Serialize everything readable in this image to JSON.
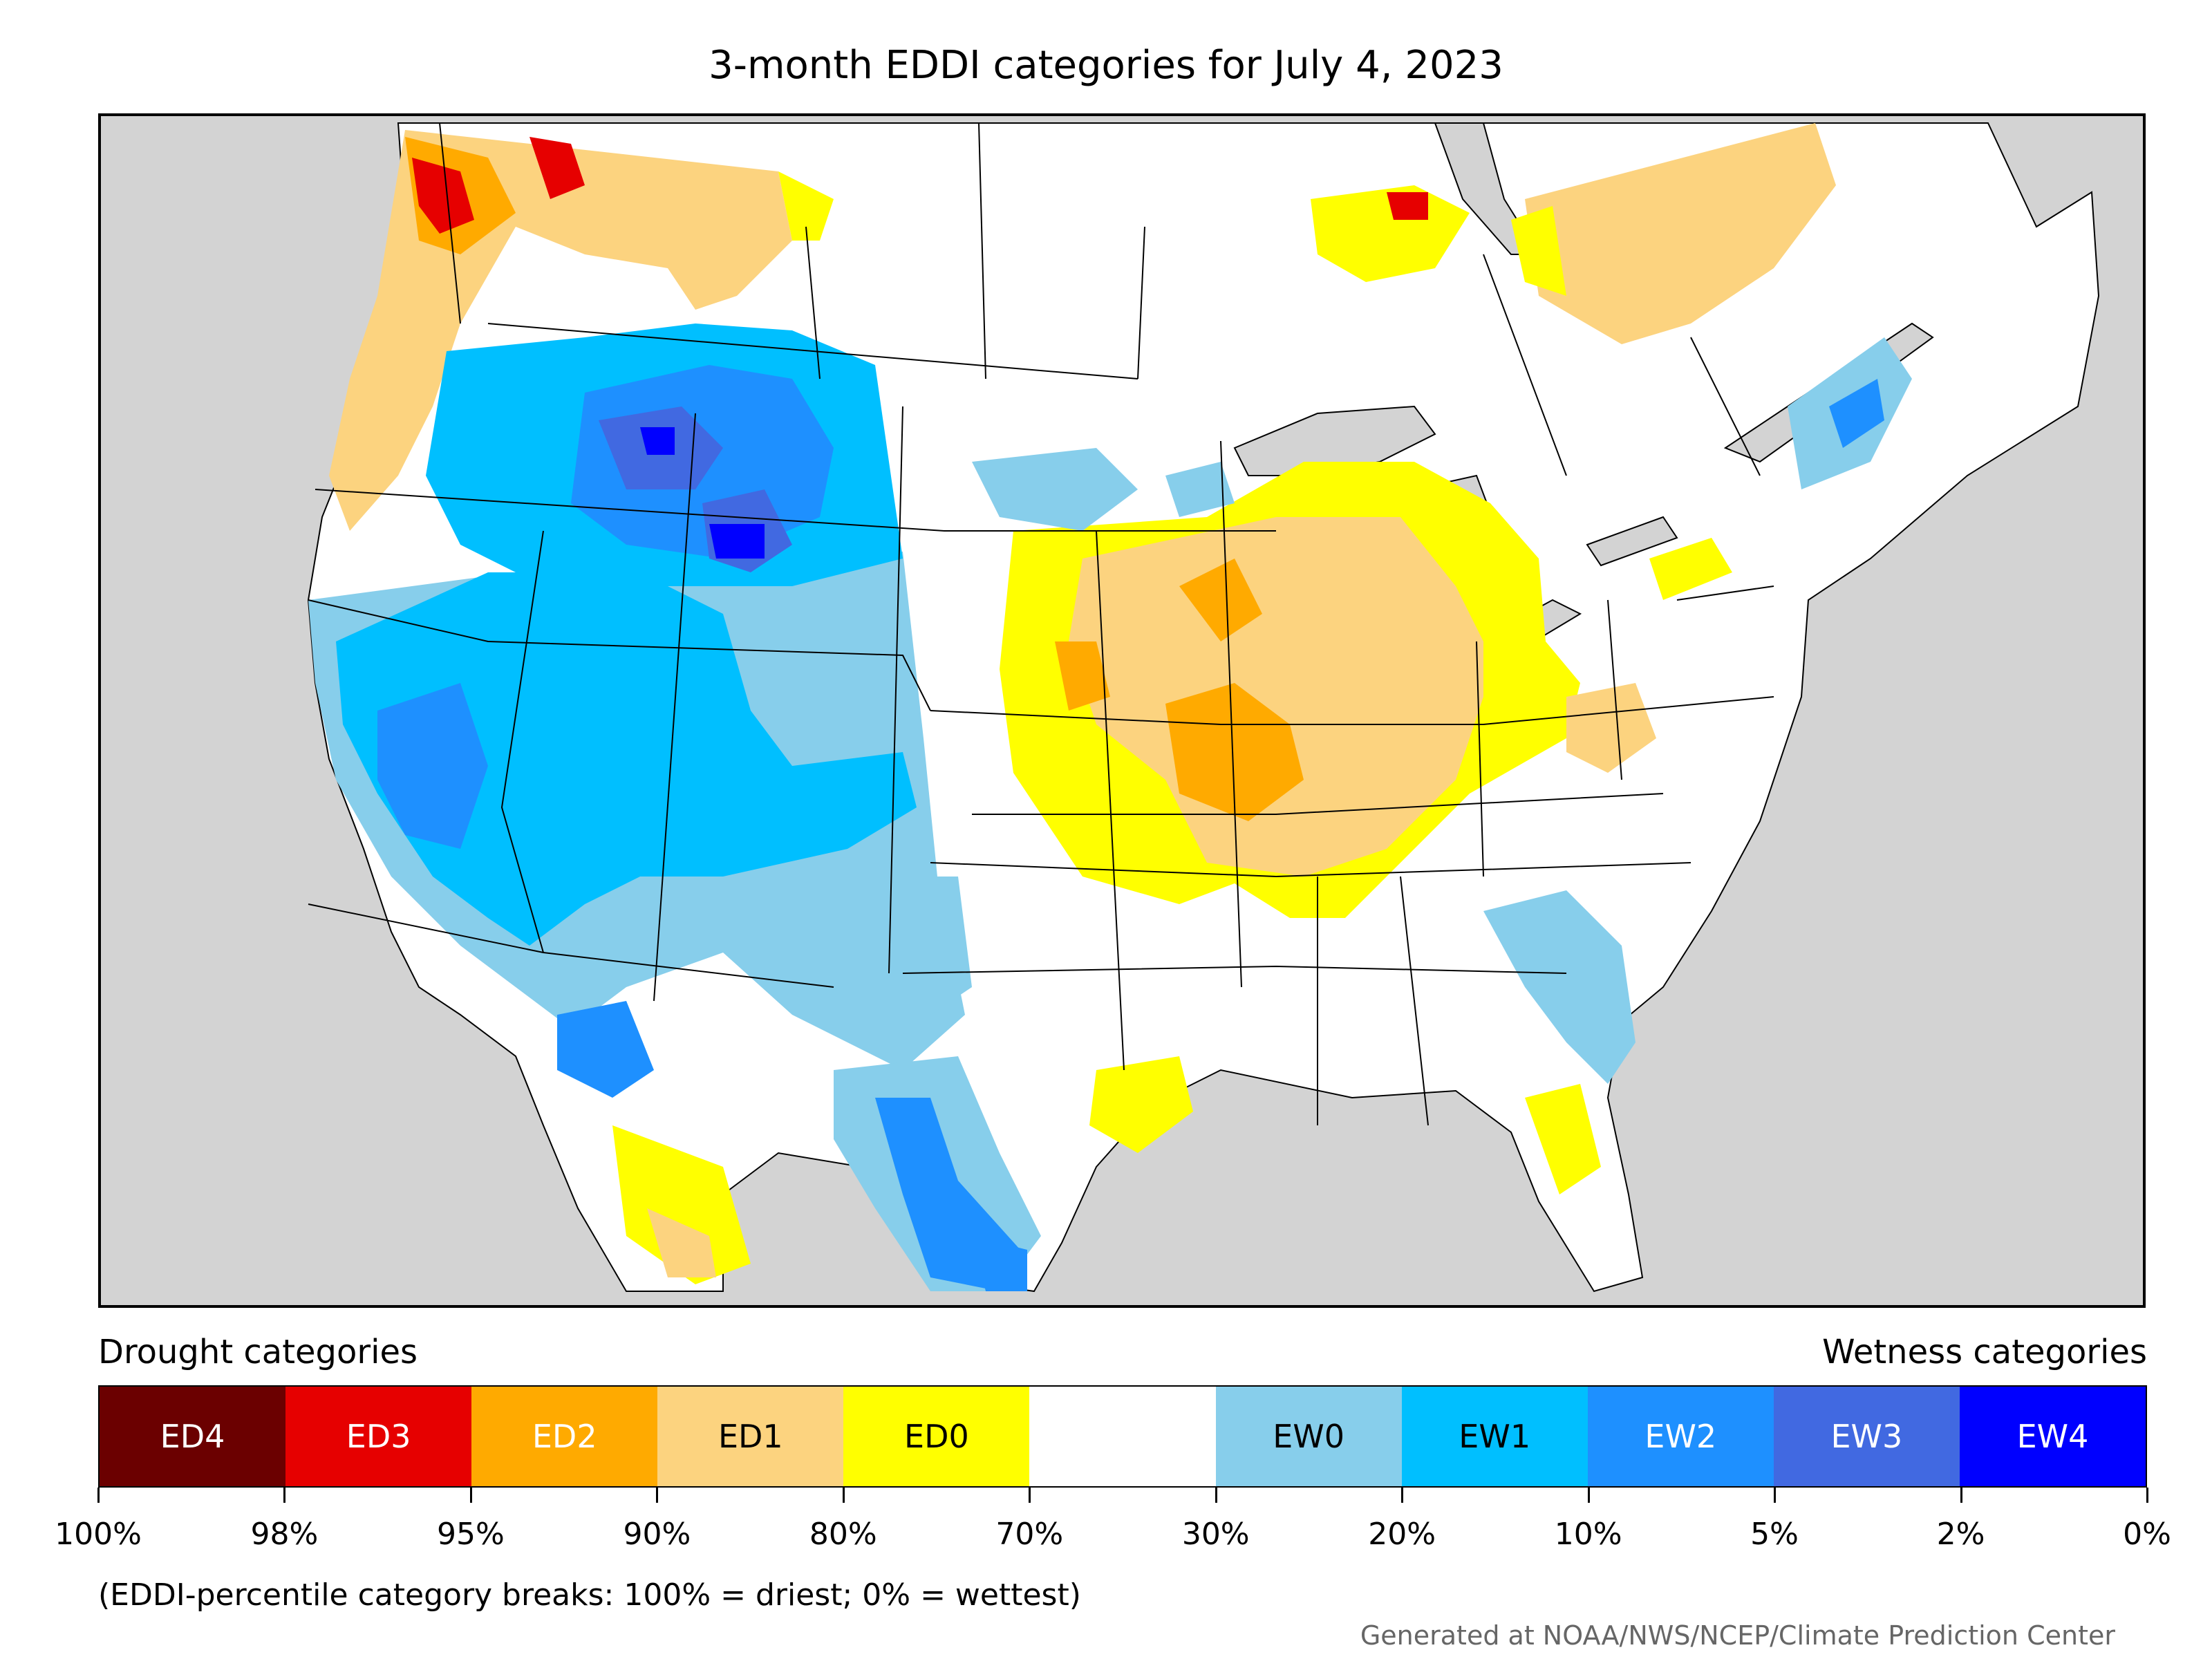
{
  "title": "3-month EDDI categories for July 4, 2023",
  "legend": {
    "drought_heading": "Drought categories",
    "wetness_heading": "Wetness categories",
    "categories": [
      {
        "label": "ED4",
        "color": "#6b0000",
        "text_color": "#ffffff"
      },
      {
        "label": "ED3",
        "color": "#e60000",
        "text_color": "#ffffff"
      },
      {
        "label": "ED2",
        "color": "#ffaa00",
        "text_color": "#ffffff"
      },
      {
        "label": "ED1",
        "color": "#fcd37f",
        "text_color": "#000000"
      },
      {
        "label": "ED0",
        "color": "#ffff00",
        "text_color": "#000000"
      },
      {
        "label": "",
        "color": "#ffffff",
        "text_color": "#000000"
      },
      {
        "label": "EW0",
        "color": "#87ceeb",
        "text_color": "#000000"
      },
      {
        "label": "EW1",
        "color": "#00bfff",
        "text_color": "#000000"
      },
      {
        "label": "EW2",
        "color": "#1e90ff",
        "text_color": "#ffffff"
      },
      {
        "label": "EW3",
        "color": "#4169e1",
        "text_color": "#ffffff"
      },
      {
        "label": "EW4",
        "color": "#0000ff",
        "text_color": "#ffffff"
      }
    ],
    "breaks": [
      "100%",
      "98%",
      "95%",
      "90%",
      "80%",
      "70%",
      "30%",
      "20%",
      "10%",
      "5%",
      "2%",
      "0%"
    ],
    "note": "(EDDI-percentile category breaks: 100% = driest; 0% = wettest)"
  },
  "credit": "Generated at NOAA/NWS/NCEP/Climate Prediction Center",
  "map": {
    "background_color": "#d3d3d3",
    "land_color": "#ffffff"
  }
}
